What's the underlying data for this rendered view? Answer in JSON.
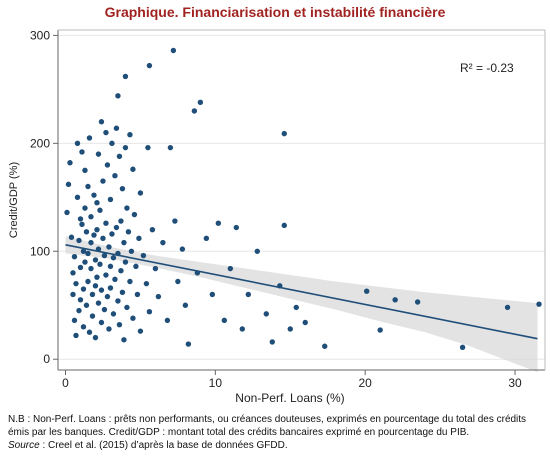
{
  "figure": {
    "title": "Graphique. Financiarisation et instabilité financière",
    "title_color": "#a02321",
    "note": "N.B : Non-Perf. Loans : prêts non performants, ou créances douteuses, exprimés en pourcentage du total des crédits émis par les banques. Credit/GDP : montant total des crédits bancaires exprimé en pourcentage du PIB.",
    "source_label": "Source",
    "source_text": " : Creel et al. (2015) d’après la base de données GFDD."
  },
  "chart_data": {
    "type": "scatter",
    "xlabel": "Non-Perf. Loans (%)",
    "ylabel": "Credit/GDP (%)",
    "xlim": [
      -0.5,
      32
    ],
    "ylim": [
      -10,
      305
    ],
    "xticks": [
      0,
      10,
      20,
      30
    ],
    "yticks": [
      0,
      100,
      200,
      300
    ],
    "annotation": "R² = -0.23",
    "grid": true,
    "marker_color": "#1f4e79",
    "fit_line": {
      "x": [
        0,
        31.5
      ],
      "y": [
        106,
        19
      ]
    },
    "confidence_band": {
      "x": [
        0,
        3,
        6,
        9,
        12,
        15,
        18,
        21,
        24,
        27,
        31.5
      ],
      "upper": [
        114,
        104,
        96,
        90,
        84,
        78,
        72,
        67,
        62,
        58,
        52
      ],
      "lower": [
        98,
        93,
        85,
        76,
        66,
        56,
        46,
        35,
        25,
        12,
        -12
      ]
    },
    "points": [
      [
        0.1,
        136
      ],
      [
        0.2,
        162
      ],
      [
        0.3,
        182
      ],
      [
        0.4,
        113
      ],
      [
        0.5,
        60
      ],
      [
        0.5,
        80
      ],
      [
        0.6,
        95
      ],
      [
        0.6,
        36
      ],
      [
        0.7,
        22
      ],
      [
        0.7,
        70
      ],
      [
        0.8,
        150
      ],
      [
        0.8,
        200
      ],
      [
        0.9,
        110
      ],
      [
        0.9,
        45
      ],
      [
        1.0,
        130
      ],
      [
        1.0,
        85
      ],
      [
        1.0,
        55
      ],
      [
        1.1,
        192
      ],
      [
        1.1,
        125
      ],
      [
        1.2,
        100
      ],
      [
        1.2,
        65
      ],
      [
        1.2,
        30
      ],
      [
        1.3,
        175
      ],
      [
        1.3,
        140
      ],
      [
        1.3,
        90
      ],
      [
        1.4,
        118
      ],
      [
        1.4,
        50
      ],
      [
        1.5,
        160
      ],
      [
        1.5,
        98
      ],
      [
        1.5,
        72
      ],
      [
        1.6,
        205
      ],
      [
        1.6,
        25
      ],
      [
        1.7,
        132
      ],
      [
        1.7,
        108
      ],
      [
        1.7,
        84
      ],
      [
        1.8,
        60
      ],
      [
        1.8,
        40
      ],
      [
        1.9,
        152
      ],
      [
        1.9,
        115
      ],
      [
        2.0,
        92
      ],
      [
        2.0,
        68
      ],
      [
        2.0,
        20
      ],
      [
        2.1,
        145
      ],
      [
        2.1,
        120
      ],
      [
        2.1,
        76
      ],
      [
        2.2,
        190
      ],
      [
        2.2,
        102
      ],
      [
        2.2,
        52
      ],
      [
        2.3,
        138
      ],
      [
        2.3,
        88
      ],
      [
        2.4,
        220
      ],
      [
        2.4,
        64
      ],
      [
        2.4,
        34
      ],
      [
        2.5,
        165
      ],
      [
        2.5,
        112
      ],
      [
        2.6,
        96
      ],
      [
        2.6,
        46
      ],
      [
        2.7,
        210
      ],
      [
        2.7,
        126
      ],
      [
        2.7,
        78
      ],
      [
        2.8,
        180
      ],
      [
        2.8,
        58
      ],
      [
        2.9,
        104
      ],
      [
        2.9,
        28
      ],
      [
        3.0,
        148
      ],
      [
        3.0,
        86
      ],
      [
        3.0,
        66
      ],
      [
        3.1,
        200
      ],
      [
        3.1,
        116
      ],
      [
        3.2,
        94
      ],
      [
        3.2,
        42
      ],
      [
        3.3,
        170
      ],
      [
        3.3,
        74
      ],
      [
        3.4,
        214
      ],
      [
        3.4,
        122
      ],
      [
        3.5,
        244
      ],
      [
        3.5,
        98
      ],
      [
        3.5,
        54
      ],
      [
        3.6,
        188
      ],
      [
        3.6,
        32
      ],
      [
        3.7,
        128
      ],
      [
        3.7,
        82
      ],
      [
        3.8,
        158
      ],
      [
        3.8,
        62
      ],
      [
        3.9,
        108
      ],
      [
        3.9,
        18
      ],
      [
        4.0,
        262
      ],
      [
        4.0,
        196
      ],
      [
        4.0,
        90
      ],
      [
        4.1,
        140
      ],
      [
        4.1,
        48
      ],
      [
        4.2,
        118
      ],
      [
        4.3,
        208
      ],
      [
        4.3,
        72
      ],
      [
        4.4,
        100
      ],
      [
        4.5,
        176
      ],
      [
        4.5,
        38
      ],
      [
        4.6,
        134
      ],
      [
        4.7,
        86
      ],
      [
        4.8,
        60
      ],
      [
        4.9,
        112
      ],
      [
        5.0,
        154
      ],
      [
        5.0,
        26
      ],
      [
        5.2,
        96
      ],
      [
        5.4,
        70
      ],
      [
        5.5,
        196
      ],
      [
        5.6,
        272
      ],
      [
        5.6,
        44
      ],
      [
        5.8,
        120
      ],
      [
        6.0,
        84
      ],
      [
        6.2,
        58
      ],
      [
        6.5,
        108
      ],
      [
        6.8,
        36
      ],
      [
        7.0,
        196
      ],
      [
        7.2,
        286
      ],
      [
        7.3,
        128
      ],
      [
        7.5,
        72
      ],
      [
        7.8,
        102
      ],
      [
        8.0,
        50
      ],
      [
        8.2,
        14
      ],
      [
        8.6,
        230
      ],
      [
        8.8,
        80
      ],
      [
        9.0,
        238
      ],
      [
        9.4,
        112
      ],
      [
        9.8,
        60
      ],
      [
        10.2,
        126
      ],
      [
        10.6,
        36
      ],
      [
        11.0,
        84
      ],
      [
        11.4,
        122
      ],
      [
        11.8,
        28
      ],
      [
        12.2,
        60
      ],
      [
        12.8,
        100
      ],
      [
        13.4,
        42
      ],
      [
        13.8,
        16
      ],
      [
        14.3,
        68
      ],
      [
        14.6,
        124
      ],
      [
        14.6,
        209
      ],
      [
        15.0,
        28
      ],
      [
        15.4,
        48
      ],
      [
        16.0,
        34
      ],
      [
        17.3,
        12
      ],
      [
        20.1,
        63
      ],
      [
        21.0,
        27
      ],
      [
        22.0,
        55
      ],
      [
        23.5,
        53
      ],
      [
        26.5,
        11
      ],
      [
        29.5,
        48
      ],
      [
        31.6,
        51
      ]
    ]
  }
}
